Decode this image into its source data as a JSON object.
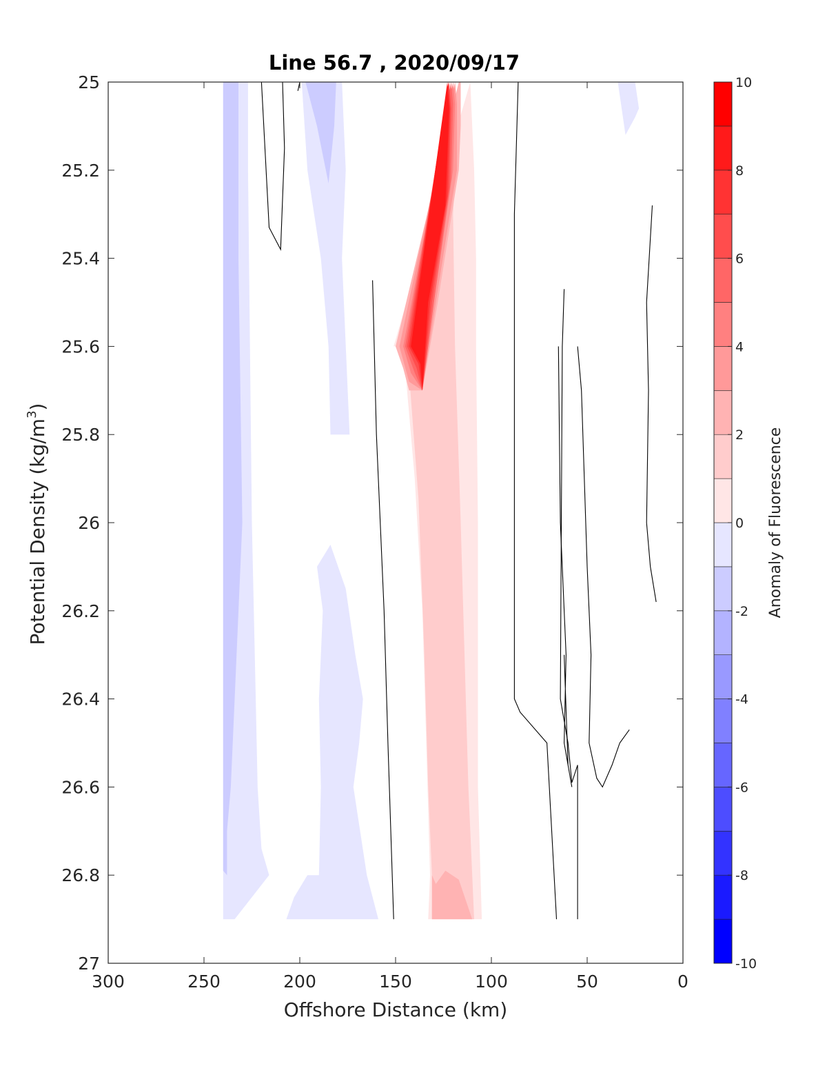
{
  "chart_data": {
    "type": "contourf",
    "title": "Line 56.7 , 2020/09/17",
    "xlabel": "Offshore Distance (km)",
    "ylabel_main": "Potential Density (kg/m",
    "ylabel_sup": "3",
    "ylabel_end": ")",
    "xlim": [
      300,
      0
    ],
    "ylim": [
      25,
      27
    ],
    "x_reversed": true,
    "y_reversed": true,
    "x_ticks": [
      300,
      250,
      200,
      150,
      100,
      50,
      0
    ],
    "y_ticks": [
      25,
      25.2,
      25.4,
      25.6,
      25.8,
      26,
      26.2,
      26.4,
      26.6,
      26.8,
      27
    ],
    "grid": false,
    "colorbar": {
      "label": "Anomaly of Fluorescence",
      "range": [
        -10,
        10
      ],
      "levels": [
        -10,
        -9,
        -8,
        -7,
        -6,
        -5,
        -4,
        -3,
        -2,
        -1,
        0,
        1,
        2,
        3,
        4,
        5,
        6,
        7,
        8,
        9,
        10
      ],
      "ticks": [
        -10,
        -8,
        -6,
        -4,
        -2,
        0,
        2,
        4,
        6,
        8,
        10
      ],
      "low_color": "#0000ff",
      "mid_color": "#ffffff",
      "high_color": "#ff0000"
    },
    "filled_regions": [
      {
        "level": -1,
        "points": [
          [
            240,
            25
          ],
          [
            227,
            25
          ],
          [
            227,
            25.2
          ],
          [
            226,
            25.6
          ],
          [
            225,
            26
          ],
          [
            223,
            26.4
          ],
          [
            222,
            26.6
          ],
          [
            220,
            26.74
          ],
          [
            216,
            26.8
          ],
          [
            234,
            26.9
          ],
          [
            240,
            26.9
          ]
        ]
      },
      {
        "level": -2,
        "points": [
          [
            240,
            25
          ],
          [
            232,
            25
          ],
          [
            232,
            25.4
          ],
          [
            230,
            26
          ],
          [
            234,
            26.4
          ],
          [
            236,
            26.6
          ],
          [
            238,
            26.7
          ],
          [
            238,
            26.8
          ],
          [
            240,
            26.79
          ]
        ]
      },
      {
        "level": -1,
        "points": [
          [
            203,
            25
          ],
          [
            199,
            25
          ],
          [
            196,
            25.2
          ],
          [
            189,
            25.4
          ],
          [
            185,
            25.6
          ],
          [
            184,
            25.8
          ],
          [
            174,
            25.8
          ],
          [
            178,
            25.4
          ],
          [
            176,
            25.2
          ],
          [
            177,
            25.1
          ],
          [
            178,
            25
          ]
        ]
      },
      {
        "level": -2,
        "points": [
          [
            197,
            25
          ],
          [
            181,
            25
          ],
          [
            182,
            25.1
          ],
          [
            185,
            25.23
          ],
          [
            191,
            25.1
          ]
        ]
      },
      {
        "level": -1,
        "points": [
          [
            188,
            26.2
          ],
          [
            191,
            26.1
          ],
          [
            184,
            26.05
          ],
          [
            180,
            26.1
          ],
          [
            176,
            26.15
          ],
          [
            171,
            26.3
          ],
          [
            167,
            26.4
          ],
          [
            169,
            26.5
          ],
          [
            172,
            26.6
          ],
          [
            165,
            26.8
          ],
          [
            159,
            26.9
          ],
          [
            207,
            26.9
          ],
          [
            203,
            26.85
          ],
          [
            196,
            26.8
          ],
          [
            190,
            26.8
          ],
          [
            189,
            26.6
          ],
          [
            190,
            26.4
          ]
        ]
      },
      {
        "level": -1,
        "points": [
          [
            34,
            25
          ],
          [
            25,
            25
          ],
          [
            23,
            25.06
          ],
          [
            25,
            25.08
          ],
          [
            30,
            25.12
          ]
        ]
      },
      {
        "level": 1,
        "points": [
          [
            151,
            25.6
          ],
          [
            146,
            25.6
          ],
          [
            145,
            25.65
          ],
          [
            140,
            25.9
          ],
          [
            136,
            26.2
          ],
          [
            134,
            26.5
          ],
          [
            132,
            26.8
          ],
          [
            133,
            26.9
          ],
          [
            105,
            26.9
          ],
          [
            107,
            26.6
          ],
          [
            107,
            26
          ],
          [
            108,
            25.6
          ],
          [
            108,
            25.4
          ],
          [
            109,
            25.2
          ],
          [
            111,
            25
          ]
        ]
      },
      {
        "level": 2,
        "points": [
          [
            146,
            25.6
          ],
          [
            143,
            25.66
          ],
          [
            138,
            25.95
          ],
          [
            135,
            26.3
          ],
          [
            133,
            26.6
          ],
          [
            131,
            26.8
          ],
          [
            131,
            26.9
          ],
          [
            109,
            26.9
          ],
          [
            112,
            26.6
          ],
          [
            116,
            26
          ],
          [
            119,
            25.6
          ],
          [
            120,
            25.3
          ],
          [
            116,
            25
          ]
        ]
      },
      {
        "level": 3,
        "points": [
          [
            131,
            26.8
          ],
          [
            131,
            26.9
          ],
          [
            110,
            26.9
          ],
          [
            117,
            26.81
          ],
          [
            124,
            26.79
          ],
          [
            129,
            26.82
          ]
        ]
      },
      {
        "level": 3,
        "points": [
          [
            150,
            25.6
          ],
          [
            146,
            25.65
          ],
          [
            143,
            25.7
          ],
          [
            136,
            25.7
          ],
          [
            128,
            25.5
          ],
          [
            117,
            25.2
          ],
          [
            116,
            25.1
          ],
          [
            116,
            25
          ],
          [
            117,
            25
          ]
        ]
      },
      {
        "level": 4,
        "points": [
          [
            148,
            25.6
          ],
          [
            143,
            25.68
          ],
          [
            136,
            25.7
          ],
          [
            129,
            25.5
          ],
          [
            118,
            25.2
          ],
          [
            118,
            25.05
          ],
          [
            119,
            25
          ]
        ]
      },
      {
        "level": 5,
        "points": [
          [
            146,
            25.6
          ],
          [
            142,
            25.66
          ],
          [
            136,
            25.7
          ],
          [
            130,
            25.5
          ],
          [
            120,
            25.2
          ],
          [
            119,
            25.05
          ],
          [
            120,
            25
          ]
        ]
      },
      {
        "level": 6,
        "points": [
          [
            145,
            25.6
          ],
          [
            140,
            25.66
          ],
          [
            136,
            25.7
          ],
          [
            130,
            25.5
          ],
          [
            121,
            25.22
          ],
          [
            120,
            25.05
          ],
          [
            121,
            25
          ]
        ]
      },
      {
        "level": 7,
        "points": [
          [
            144,
            25.6
          ],
          [
            139,
            25.65
          ],
          [
            136,
            25.7
          ],
          [
            131,
            25.5
          ],
          [
            122,
            25.24
          ],
          [
            121,
            25.06
          ],
          [
            122,
            25
          ]
        ]
      },
      {
        "level": 8,
        "points": [
          [
            143,
            25.6
          ],
          [
            138,
            25.64
          ],
          [
            136,
            25.7
          ],
          [
            132,
            25.5
          ],
          [
            123,
            25.26
          ],
          [
            121.5,
            25.06
          ],
          [
            122.5,
            25
          ]
        ]
      },
      {
        "level": 9,
        "points": [
          [
            142,
            25.6
          ],
          [
            137,
            25.64
          ],
          [
            136,
            25.7
          ],
          [
            133,
            25.5
          ],
          [
            124,
            25.28
          ],
          [
            122,
            25.06
          ],
          [
            123,
            25
          ]
        ]
      }
    ],
    "contour_lines": [
      [
        [
          220,
          25
        ],
        [
          216,
          25.33
        ],
        [
          210,
          25.38
        ],
        [
          208,
          25.15
        ],
        [
          209,
          25
        ]
      ],
      [
        [
          200,
          25
        ],
        [
          201,
          25.02
        ]
      ],
      [
        [
          162,
          25.45
        ],
        [
          160,
          25.8
        ],
        [
          156,
          26.2
        ],
        [
          154,
          26.5
        ],
        [
          151,
          26.9
        ]
      ],
      [
        [
          86,
          25
        ],
        [
          88,
          25.3
        ],
        [
          88,
          26.4
        ],
        [
          85,
          26.43
        ],
        [
          71,
          26.5
        ],
        [
          66,
          26.9
        ]
      ],
      [
        [
          65,
          25.6
        ],
        [
          64,
          26
        ],
        [
          61,
          26.3
        ],
        [
          62,
          26.5
        ],
        [
          58,
          26.6
        ],
        [
          60,
          26.55
        ],
        [
          62,
          26.3
        ]
      ],
      [
        [
          55,
          25.6
        ],
        [
          53,
          25.7
        ],
        [
          50,
          26.1
        ],
        [
          48,
          26.3
        ],
        [
          49,
          26.5
        ],
        [
          45,
          26.58
        ],
        [
          42,
          26.6
        ],
        [
          37,
          26.55
        ],
        [
          33,
          26.5
        ],
        [
          28,
          26.47
        ]
      ],
      [
        [
          16,
          25.28
        ],
        [
          19,
          25.5
        ],
        [
          18,
          25.7
        ],
        [
          19,
          26
        ],
        [
          17,
          26.1
        ],
        [
          14,
          26.18
        ]
      ],
      [
        [
          62,
          25.47
        ],
        [
          63,
          25.6
        ],
        [
          64,
          26.4
        ],
        [
          60,
          26.5
        ],
        [
          58,
          26.59
        ],
        [
          55,
          26.55
        ],
        [
          55,
          26.7
        ],
        [
          55,
          26.9
        ]
      ]
    ]
  }
}
